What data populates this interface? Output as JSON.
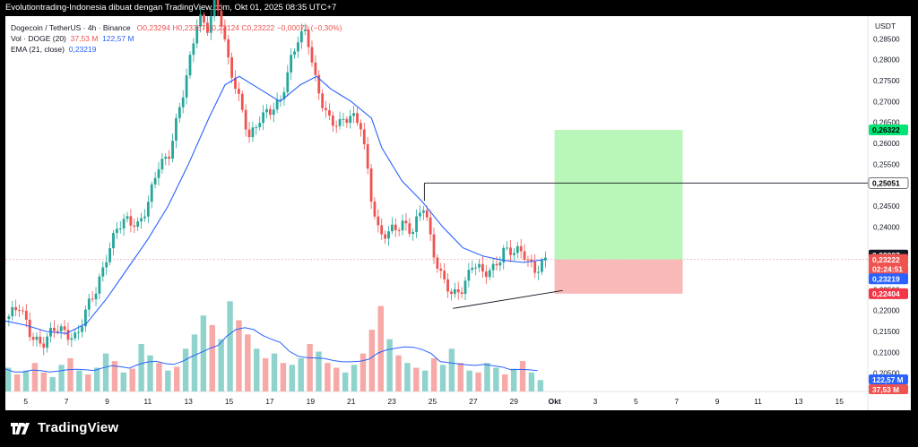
{
  "header": {
    "caption": "Evolutiontrading-Indonesia dibuat dengan TradingView.com, Okt 01, 2025 08:35 UTC+7"
  },
  "legend": {
    "symbol": "Dogecoin / TetherUS · 4h · Binance",
    "ohlc": "O0,23294  H0,23357  L0,23124  C0,23222  −0,00071 (−0,30%)",
    "vol_label": "Vol · DOGE (20)",
    "vol_value": "37,53 M",
    "vol_ma": "122,57 M",
    "ema_label": "EMA (21, close)",
    "ema_value": "0,23219"
  },
  "footer": {
    "brand": "TradingView"
  },
  "colors": {
    "up": "#26a69a",
    "down": "#ef5350",
    "vol_up": "#8fd3cc",
    "vol_down": "#f7a9a7",
    "ema": "#2962ff",
    "profit_zone": "#b9f6b9",
    "loss_zone": "#f9b9b9"
  },
  "chart_data": {
    "type": "candlestick",
    "currency": "USDT",
    "y_ticks": [
      "0,28500",
      "0,28000",
      "0,27500",
      "0,27000",
      "0,26500",
      "0,26000",
      "0,25500",
      "0,24500",
      "0,24000",
      "0,22500",
      "0,22000",
      "0,21500",
      "0,21000",
      "0,20500"
    ],
    "ylim": [
      0.2,
      0.29
    ],
    "x_ticks": [
      {
        "label": "5",
        "day": 5
      },
      {
        "label": "7",
        "day": 7
      },
      {
        "label": "9",
        "day": 9
      },
      {
        "label": "11",
        "day": 11
      },
      {
        "label": "13",
        "day": 13
      },
      {
        "label": "15",
        "day": 15
      },
      {
        "label": "17",
        "day": 17
      },
      {
        "label": "19",
        "day": 19
      },
      {
        "label": "21",
        "day": 21
      },
      {
        "label": "23",
        "day": 23
      },
      {
        "label": "25",
        "day": 25
      },
      {
        "label": "27",
        "day": 27
      },
      {
        "label": "29",
        "day": 29
      },
      {
        "label": "Okt",
        "day": 31
      },
      {
        "label": "3",
        "day": 33
      },
      {
        "label": "5",
        "day": 35
      },
      {
        "label": "7",
        "day": 37
      },
      {
        "label": "9",
        "day": 39
      },
      {
        "label": "11",
        "day": 41
      },
      {
        "label": "13",
        "day": 43
      },
      {
        "label": "15",
        "day": 45
      }
    ],
    "price_path": [
      [
        4.0,
        0.218
      ],
      [
        4.7,
        0.2205
      ],
      [
        5.2,
        0.215
      ],
      [
        5.8,
        0.212
      ],
      [
        6.5,
        0.2155
      ],
      [
        7.0,
        0.2148
      ],
      [
        7.5,
        0.214
      ],
      [
        8.0,
        0.22
      ],
      [
        8.5,
        0.225
      ],
      [
        9.0,
        0.234
      ],
      [
        9.5,
        0.24
      ],
      [
        10.0,
        0.241
      ],
      [
        10.5,
        0.2405
      ],
      [
        11.0,
        0.246
      ],
      [
        11.5,
        0.254
      ],
      [
        12.0,
        0.256
      ],
      [
        12.5,
        0.268
      ],
      [
        13.0,
        0.278
      ],
      [
        13.5,
        0.29
      ],
      [
        13.9,
        0.287
      ],
      [
        14.3,
        0.295
      ],
      [
        14.6,
        0.29
      ],
      [
        15.0,
        0.278
      ],
      [
        15.5,
        0.27
      ],
      [
        16.0,
        0.262
      ],
      [
        16.5,
        0.266
      ],
      [
        17.0,
        0.267
      ],
      [
        17.5,
        0.27
      ],
      [
        18.0,
        0.28
      ],
      [
        18.4,
        0.285
      ],
      [
        18.8,
        0.286
      ],
      [
        19.3,
        0.274
      ],
      [
        20.0,
        0.265
      ],
      [
        20.5,
        0.264
      ],
      [
        21.0,
        0.267
      ],
      [
        21.5,
        0.265
      ],
      [
        22.0,
        0.246
      ],
      [
        22.4,
        0.237
      ],
      [
        23.0,
        0.24
      ],
      [
        23.5,
        0.241
      ],
      [
        24.0,
        0.238
      ],
      [
        24.6,
        0.246
      ],
      [
        25.0,
        0.235
      ],
      [
        25.5,
        0.227
      ],
      [
        26.0,
        0.223
      ],
      [
        26.5,
        0.226
      ],
      [
        27.0,
        0.232
      ],
      [
        27.5,
        0.228
      ],
      [
        28.0,
        0.23
      ],
      [
        28.5,
        0.235
      ],
      [
        29.0,
        0.234
      ],
      [
        29.5,
        0.233
      ],
      [
        30.0,
        0.23
      ],
      [
        30.5,
        0.2322
      ]
    ],
    "ema_path": [
      [
        4.0,
        0.2175
      ],
      [
        5.0,
        0.2165
      ],
      [
        6.0,
        0.215
      ],
      [
        7.0,
        0.2145
      ],
      [
        8.0,
        0.217
      ],
      [
        9.0,
        0.223
      ],
      [
        10.0,
        0.23
      ],
      [
        11.0,
        0.237
      ],
      [
        12.0,
        0.245
      ],
      [
        13.0,
        0.255
      ],
      [
        14.0,
        0.266
      ],
      [
        14.8,
        0.274
      ],
      [
        15.5,
        0.276
      ],
      [
        16.5,
        0.273
      ],
      [
        17.5,
        0.27
      ],
      [
        18.5,
        0.274
      ],
      [
        19.3,
        0.276
      ],
      [
        20.0,
        0.273
      ],
      [
        21.0,
        0.27
      ],
      [
        22.0,
        0.266
      ],
      [
        22.5,
        0.259
      ],
      [
        23.5,
        0.251
      ],
      [
        24.5,
        0.246
      ],
      [
        25.5,
        0.24
      ],
      [
        26.5,
        0.235
      ],
      [
        27.5,
        0.233
      ],
      [
        28.5,
        0.232
      ],
      [
        29.5,
        0.2315
      ],
      [
        30.5,
        0.2322
      ]
    ],
    "volume": {
      "ma_label": "122,57 M",
      "bars_relative": [
        0.25,
        0.18,
        0.22,
        0.3,
        0.2,
        0.15,
        0.28,
        0.35,
        0.22,
        0.18,
        0.25,
        0.4,
        0.32,
        0.2,
        0.24,
        0.5,
        0.38,
        0.3,
        0.22,
        0.26,
        0.45,
        0.6,
        0.8,
        0.7,
        0.55,
        0.95,
        0.75,
        0.6,
        0.45,
        0.35,
        0.4,
        0.3,
        0.28,
        0.35,
        0.5,
        0.42,
        0.3,
        0.25,
        0.2,
        0.28,
        0.4,
        0.65,
        0.9,
        0.55,
        0.38,
        0.3,
        0.25,
        0.22,
        0.35,
        0.28,
        0.45,
        0.3,
        0.22,
        0.2,
        0.3,
        0.25,
        0.18,
        0.24,
        0.32,
        0.2,
        0.12
      ],
      "bars_up": [
        1,
        0,
        1,
        0,
        0,
        1,
        1,
        0,
        1,
        0,
        1,
        1,
        0,
        1,
        0,
        1,
        1,
        0,
        1,
        0,
        1,
        1,
        1,
        0,
        1,
        1,
        0,
        0,
        1,
        0,
        1,
        0,
        1,
        1,
        0,
        1,
        0,
        0,
        1,
        1,
        0,
        0,
        0,
        1,
        0,
        1,
        0,
        1,
        0,
        1,
        1,
        0,
        1,
        0,
        1,
        1,
        0,
        1,
        0,
        1,
        1
      ]
    },
    "horizontal_line": {
      "value": 0.25051,
      "label": "0,25051",
      "from_day": 24.6
    },
    "trendline": {
      "from": [
        26.0,
        0.2205
      ],
      "to": [
        31.4,
        0.2248
      ]
    },
    "position": {
      "entry": 0.23222,
      "target": 0.26322,
      "stop": 0.22404,
      "from_day": 31.0,
      "to_day": 37.3
    },
    "price_badges": [
      {
        "label": "0,26322",
        "value": 0.26322,
        "color": "#00e676",
        "text": "#000"
      },
      {
        "label": "0,25051",
        "value": 0.25051,
        "color": "#ffffff",
        "text": "#000"
      },
      {
        "label": "0,23327",
        "value": 0.23327,
        "color": "#131722",
        "text": "#fff"
      },
      {
        "label": "0,23222",
        "value": 0.23222,
        "color": "#ef5350",
        "text": "#fff"
      },
      {
        "label": "02:24:51",
        "value": 0.2299,
        "color": "#ef5350",
        "text": "#fff"
      },
      {
        "label": "0,23219",
        "value": 0.2276,
        "color": "#2962ff",
        "text": "#fff"
      },
      {
        "label": "0,22404",
        "value": 0.22404,
        "color": "#f23645",
        "text": "#fff"
      }
    ],
    "volume_badges": [
      {
        "label": "122,57 M",
        "color": "#2962ff",
        "text": "#fff"
      },
      {
        "label": "37,53 M",
        "color": "#ef5350",
        "text": "#fff"
      }
    ]
  }
}
